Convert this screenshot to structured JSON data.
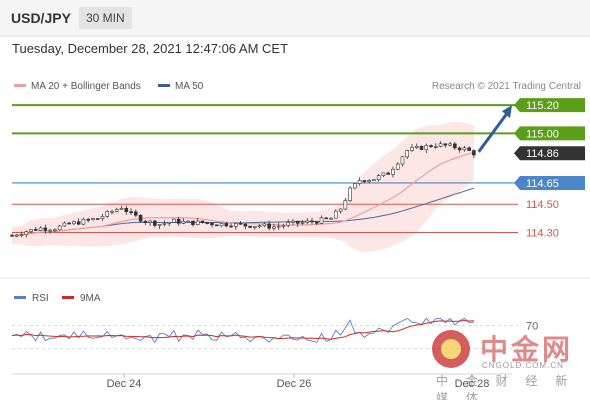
{
  "header": {
    "pair": "USD/JPY",
    "timeframe": "30 MIN"
  },
  "datetime": "Tuesday, December 28, 2021 12:47:06 AM CET",
  "legend": {
    "ma20": "MA 20 + Bollinger Bands",
    "ma50": "MA 50",
    "credit": "Research © 2021 Trading Central"
  },
  "rsi_legend": {
    "rsi": "RSI",
    "ma": "9MA"
  },
  "watermark": {
    "cn": "中金网",
    "url": "CNGOLD.COM.CN",
    "sub": "中 金 财 经 新 媒 体"
  },
  "colors": {
    "green": "#5a9e1a",
    "blue": "#4a86c8",
    "red": "#d9534f",
    "candle": "#333333",
    "price_tag": "#333333",
    "bb_fill": "#fde2e2",
    "ma20": "#e8a0a0",
    "ma50": "#4a6a9a",
    "rsi": "#5b7fc8",
    "rsi_ma": "#cc2a2a"
  },
  "chart_data": [
    {
      "type": "candlestick",
      "x_ticks": [
        "Dec 24",
        "Dec 26",
        "Dec 28"
      ],
      "ylim": [
        114.12,
        115.25
      ],
      "levels": [
        {
          "value": 115.2,
          "label": "115.20",
          "kind": "resistance"
        },
        {
          "value": 115.0,
          "label": "115.00",
          "kind": "resistance"
        },
        {
          "value": 114.86,
          "label": "114.86",
          "kind": "price"
        },
        {
          "value": 114.65,
          "label": "114.65",
          "kind": "pivot"
        },
        {
          "value": 114.5,
          "label": "114.50",
          "kind": "support"
        },
        {
          "value": 114.3,
          "label": "114.30",
          "kind": "support"
        }
      ],
      "close_path": [
        [
          0,
          114.28
        ],
        [
          3,
          114.31
        ],
        [
          6,
          114.33
        ],
        [
          9,
          114.33
        ],
        [
          12,
          114.36
        ],
        [
          15,
          114.38
        ],
        [
          18,
          114.4
        ],
        [
          21,
          114.45
        ],
        [
          23,
          114.48
        ],
        [
          25,
          114.43
        ],
        [
          28,
          114.38
        ],
        [
          31,
          114.36
        ],
        [
          34,
          114.38
        ],
        [
          37,
          114.37
        ],
        [
          40,
          114.37
        ],
        [
          43,
          114.36
        ],
        [
          46,
          114.36
        ],
        [
          49,
          114.35
        ],
        [
          52,
          114.35
        ],
        [
          55,
          114.34
        ],
        [
          58,
          114.36
        ],
        [
          61,
          114.37
        ],
        [
          64,
          114.38
        ],
        [
          67,
          114.4
        ],
        [
          69,
          114.47
        ],
        [
          71,
          114.6
        ],
        [
          73,
          114.67
        ],
        [
          76,
          114.68
        ],
        [
          79,
          114.72
        ],
        [
          81,
          114.8
        ],
        [
          83,
          114.88
        ],
        [
          86,
          114.9
        ],
        [
          89,
          114.92
        ],
        [
          92,
          114.91
        ],
        [
          95,
          114.89
        ],
        [
          97,
          114.86
        ]
      ],
      "arrow": {
        "from": [
          98,
          114.87
        ],
        "to": [
          105,
          115.2
        ]
      }
    },
    {
      "type": "line",
      "name": "RSI",
      "y_ticks": [
        "70"
      ],
      "ylim": [
        0,
        100
      ]
    }
  ]
}
